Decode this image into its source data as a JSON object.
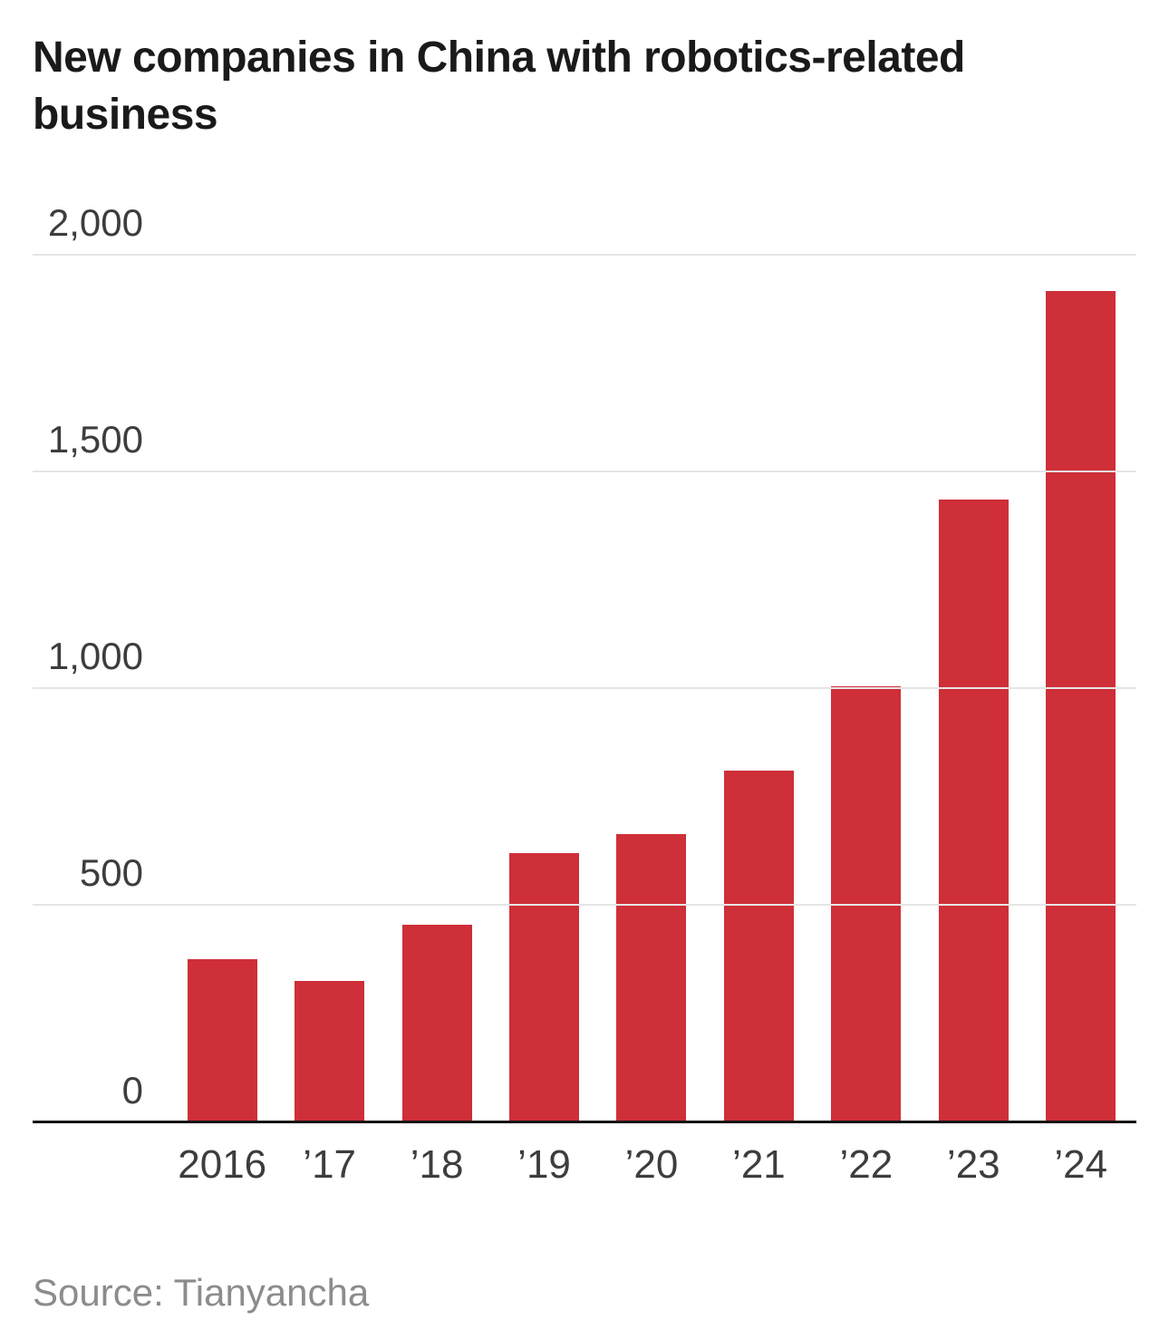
{
  "chart_data": {
    "type": "bar",
    "title": "New companies in China with robotics-related business",
    "categories": [
      "2016",
      "’17",
      "’18",
      "’19",
      "’20",
      "’21",
      "’22",
      "’23",
      "’24"
    ],
    "values": [
      375,
      325,
      455,
      620,
      665,
      810,
      1005,
      1435,
      1915
    ],
    "xlabel": "",
    "ylabel": "",
    "ylim": [
      0,
      2000
    ],
    "yticks": [
      0,
      500,
      1000,
      1500,
      2000
    ],
    "ytick_labels": [
      "0",
      "500",
      "1,000",
      "1,500",
      "2,000"
    ],
    "grid": true,
    "legend": "none",
    "bar_color": "#ce2f38",
    "gridline_color": "#e5e5e5",
    "axis_line_color": "#141414",
    "source": "Source: Tianyancha"
  }
}
